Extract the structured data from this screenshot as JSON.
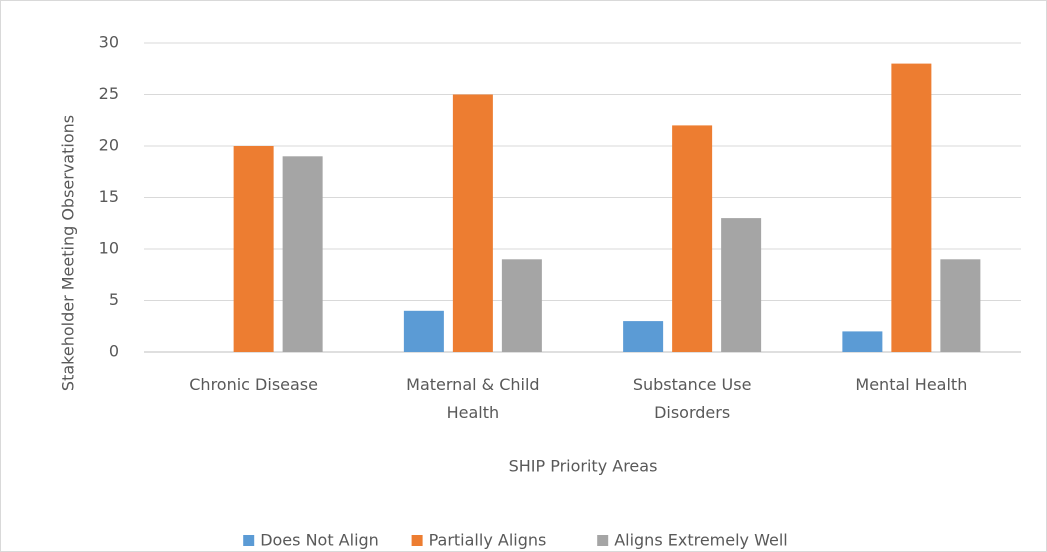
{
  "chart_data": {
    "type": "bar",
    "categories": [
      "Chronic Disease",
      "Maternal & Child Health",
      "Substance Use Disorders",
      "Mental Health"
    ],
    "series": [
      {
        "name": "Does Not Align",
        "color": "#5b9bd5",
        "values": [
          0,
          4,
          3,
          2
        ]
      },
      {
        "name": "Partially Aligns",
        "color": "#ed7d31",
        "values": [
          20,
          25,
          22,
          28
        ]
      },
      {
        "name": "Aligns Extremely Well",
        "color": "#a5a5a5",
        "values": [
          19,
          9,
          13,
          9
        ]
      }
    ],
    "x_label": "SHIP Priority Areas",
    "y_label": "Stakeholder Meeting Observations",
    "ylim": [
      0,
      30
    ],
    "yticks": [
      0,
      5,
      10,
      15,
      20,
      25,
      30
    ],
    "grid": true,
    "legend": "bottom"
  }
}
